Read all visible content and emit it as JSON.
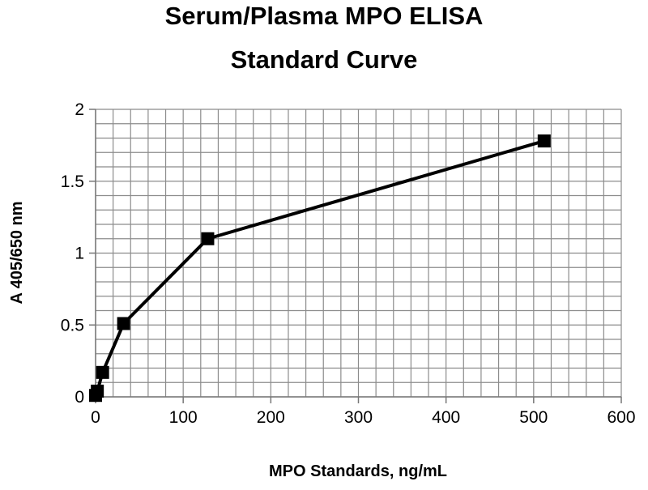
{
  "chart_data": {
    "type": "line",
    "title": [
      "Serum/Plasma MPO  ELISA",
      "Standard Curve"
    ],
    "xlabel": "MPO Standards, ng/mL",
    "ylabel": "A  405/650 nm",
    "xlim": [
      0,
      600
    ],
    "ylim": [
      0,
      2
    ],
    "xticks": [
      0,
      100,
      200,
      300,
      400,
      500,
      600
    ],
    "xtick_labels": [
      "0",
      "100",
      "200",
      "300",
      "400",
      "500",
      "600"
    ],
    "yticks": [
      0,
      0.5,
      1,
      1.5,
      2
    ],
    "ytick_labels": [
      "0",
      "0.5",
      "1",
      "1.5",
      "2"
    ],
    "grid": true,
    "x_minor_step": 20,
    "y_minor_step": 0.1,
    "series": [
      {
        "name": "Standard Curve",
        "marker": "square",
        "color": "#000000",
        "x": [
          0,
          2,
          8,
          32,
          128,
          512
        ],
        "y": [
          0.01,
          0.04,
          0.17,
          0.51,
          1.1,
          1.78
        ]
      }
    ]
  }
}
